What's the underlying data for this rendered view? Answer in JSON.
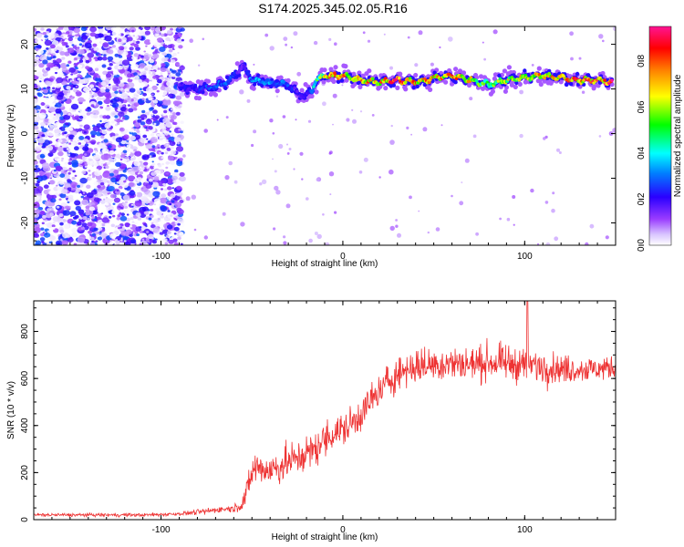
{
  "title": "S174.2025.345.02.05.R16",
  "chart_data": [
    {
      "type": "heatmap",
      "xlabel": "Height of straight line (km)",
      "ylabel": "Frequency (Hz)",
      "xlim": [
        -170,
        150
      ],
      "ylim": [
        -25,
        24
      ],
      "xticks": [
        -100,
        0,
        100
      ],
      "yticks": [
        -20,
        -10,
        0,
        10,
        20
      ],
      "colorbar": {
        "label": "Normalized spectral amplitude",
        "range": [
          0,
          0.95
        ],
        "ticks": [
          0,
          0.2,
          0.4,
          0.6,
          0.8
        ],
        "ticklabels": [
          "0.0",
          "0.2",
          "0.4",
          "0.6",
          "0.8"
        ],
        "colors": [
          "#ffffff",
          "#b388ff",
          "#7b00ff",
          "#0000ff",
          "#00ffff",
          "#00ff00",
          "#ffff00",
          "#ff7f00",
          "#ff0000",
          "#ff1493"
        ]
      },
      "noise_region_x": [
        -170,
        -88
      ],
      "ridge": {
        "x": [
          -90,
          -80,
          -70,
          -62,
          -58,
          -55,
          -50,
          -40,
          -30,
          -25,
          -20,
          -17,
          -15,
          -10,
          0,
          10,
          20,
          30,
          40,
          50,
          60,
          70,
          80,
          90,
          100,
          110,
          120,
          130,
          140,
          148
        ],
        "freq": [
          10.5,
          10,
          10.5,
          12,
          14,
          15,
          12,
          11.5,
          11,
          9,
          8.5,
          9.5,
          12,
          13,
          13,
          12,
          11.5,
          12,
          11.5,
          12.5,
          13,
          12,
          11,
          12,
          12.5,
          13,
          12.5,
          12,
          12,
          11.5
        ],
        "amplitude": [
          0.2,
          0.25,
          0.3,
          0.3,
          0.2,
          0.15,
          0.35,
          0.35,
          0.3,
          0.2,
          0.2,
          0.3,
          0.5,
          0.7,
          0.8,
          0.75,
          0.8,
          0.85,
          0.8,
          0.75,
          0.8,
          0.7,
          0.6,
          0.65,
          0.7,
          0.75,
          0.8,
          0.85,
          0.85,
          0.9
        ]
      }
    },
    {
      "type": "line",
      "xlabel": "Height of straight line (km)",
      "ylabel": "SNR (10 * v/v)",
      "xlim": [
        -170,
        150
      ],
      "ylim": [
        0,
        930
      ],
      "xticks": [
        -100,
        0,
        100
      ],
      "yticks": [
        0,
        200,
        400,
        600,
        800
      ],
      "color": "#ee3333",
      "x": [
        -170,
        -150,
        -130,
        -110,
        -100,
        -90,
        -85,
        -80,
        -75,
        -70,
        -65,
        -60,
        -55,
        -52,
        -50,
        -47,
        -45,
        -40,
        -35,
        -30,
        -25,
        -20,
        -15,
        -10,
        -5,
        0,
        5,
        10,
        15,
        20,
        25,
        30,
        35,
        40,
        50,
        60,
        70,
        80,
        90,
        100,
        110,
        120,
        130,
        140,
        150
      ],
      "y": [
        20,
        20,
        20,
        20,
        22,
        25,
        28,
        32,
        35,
        42,
        45,
        48,
        70,
        140,
        200,
        230,
        215,
        210,
        225,
        245,
        260,
        280,
        300,
        340,
        370,
        380,
        410,
        450,
        500,
        540,
        590,
        620,
        640,
        650,
        660,
        665,
        660,
        670,
        665,
        660,
        650,
        640,
        640,
        640,
        650
      ],
      "noise": [
        8,
        8,
        8,
        8,
        8,
        8,
        10,
        12,
        14,
        14,
        14,
        16,
        40,
        60,
        70,
        80,
        80,
        80,
        80,
        80,
        80,
        80,
        80,
        80,
        80,
        80,
        80,
        80,
        80,
        80,
        80,
        80,
        80,
        80,
        80,
        80,
        80,
        80,
        80,
        80,
        75,
        65,
        60,
        55,
        50
      ],
      "peak": {
        "x": 101.5,
        "y": 930
      }
    }
  ]
}
